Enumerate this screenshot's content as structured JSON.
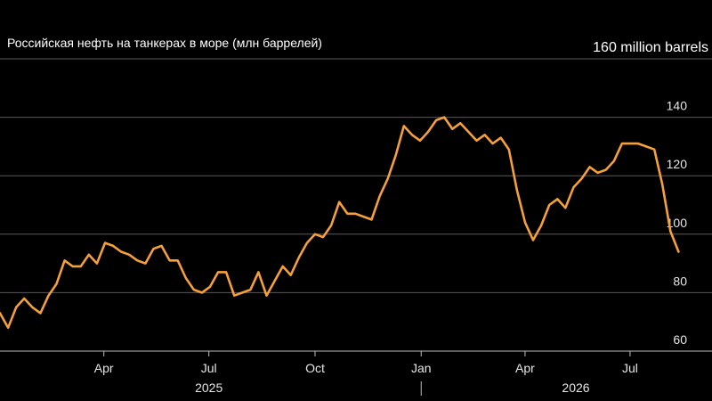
{
  "chart_data": {
    "type": "line",
    "title": "Российская нефть на танкерах в море (млн баррелей)",
    "ylabel": "",
    "xlabel": "",
    "unit_label": "160 million barrels",
    "ylim": [
      60,
      160
    ],
    "yticks": [
      60,
      80,
      100,
      120,
      140,
      160
    ],
    "xlim": [
      "2025-01-01",
      "2026-09-10"
    ],
    "x_ticks": [
      {
        "date": "2025-04-01",
        "label": "Apr"
      },
      {
        "date": "2025-07-01",
        "label": "Jul"
      },
      {
        "date": "2025-10-01",
        "label": "Oct"
      },
      {
        "date": "2026-01-01",
        "label": "Jan"
      },
      {
        "date": "2026-04-01",
        "label": "Apr"
      },
      {
        "date": "2026-07-01",
        "label": "Jul"
      }
    ],
    "year_labels": [
      {
        "date": "2025-07-01",
        "label": "2025"
      },
      {
        "date": "2026-05-15",
        "label": "2026"
      }
    ],
    "year_divider": "2026-01-01",
    "grid": true,
    "line_color": "#f5a03a",
    "series": [
      {
        "name": "",
        "x": [
          "2025-01-01",
          "2025-01-08",
          "2025-01-15",
          "2025-01-22",
          "2025-01-29",
          "2025-02-05",
          "2025-02-12",
          "2025-02-19",
          "2025-02-26",
          "2025-03-05",
          "2025-03-12",
          "2025-03-19",
          "2025-03-26",
          "2025-04-02",
          "2025-04-09",
          "2025-04-16",
          "2025-04-23",
          "2025-04-30",
          "2025-05-07",
          "2025-05-14",
          "2025-05-21",
          "2025-05-28",
          "2025-06-04",
          "2025-06-11",
          "2025-06-18",
          "2025-06-25",
          "2025-07-02",
          "2025-07-09",
          "2025-07-16",
          "2025-07-23",
          "2025-07-30",
          "2025-08-06",
          "2025-08-13",
          "2025-08-20",
          "2025-08-27",
          "2025-09-03",
          "2025-09-10",
          "2025-09-17",
          "2025-09-24",
          "2025-10-01",
          "2025-10-08",
          "2025-10-15",
          "2025-10-22",
          "2025-10-29",
          "2025-11-05",
          "2025-11-12",
          "2025-11-19",
          "2025-11-26",
          "2025-12-03",
          "2025-12-10",
          "2025-12-17",
          "2025-12-24",
          "2025-12-31",
          "2026-01-07",
          "2026-01-14",
          "2026-01-21",
          "2026-01-28",
          "2026-02-04",
          "2026-02-11",
          "2026-02-18",
          "2026-02-25",
          "2026-03-04",
          "2026-03-11",
          "2026-03-18",
          "2026-03-25",
          "2026-04-01",
          "2026-04-08",
          "2026-04-15",
          "2026-04-22",
          "2026-04-29",
          "2026-05-06",
          "2026-05-13",
          "2026-05-20",
          "2026-05-27",
          "2026-06-03",
          "2026-06-10",
          "2026-06-17",
          "2026-06-24",
          "2026-07-01",
          "2026-07-08",
          "2026-07-15",
          "2026-07-22",
          "2026-07-29",
          "2026-08-05",
          "2026-08-12"
        ],
        "values": [
          73,
          68,
          75,
          78,
          75,
          73,
          79,
          83,
          91,
          89,
          89,
          93,
          90,
          97,
          96,
          94,
          93,
          91,
          90,
          95,
          96,
          91,
          91,
          85,
          81,
          80,
          82,
          87,
          87,
          79,
          80,
          81,
          87,
          79,
          84,
          89,
          86,
          92,
          97,
          100,
          99,
          103,
          111,
          107,
          107,
          106,
          105,
          113,
          119,
          127,
          137,
          134,
          132,
          135,
          139,
          140,
          136,
          138,
          135,
          132,
          134,
          131,
          133,
          129,
          115,
          104,
          98,
          103,
          110,
          112,
          109,
          116,
          119,
          123,
          121,
          122,
          125,
          131,
          131,
          131,
          130,
          129,
          117,
          101,
          94
        ]
      }
    ]
  }
}
